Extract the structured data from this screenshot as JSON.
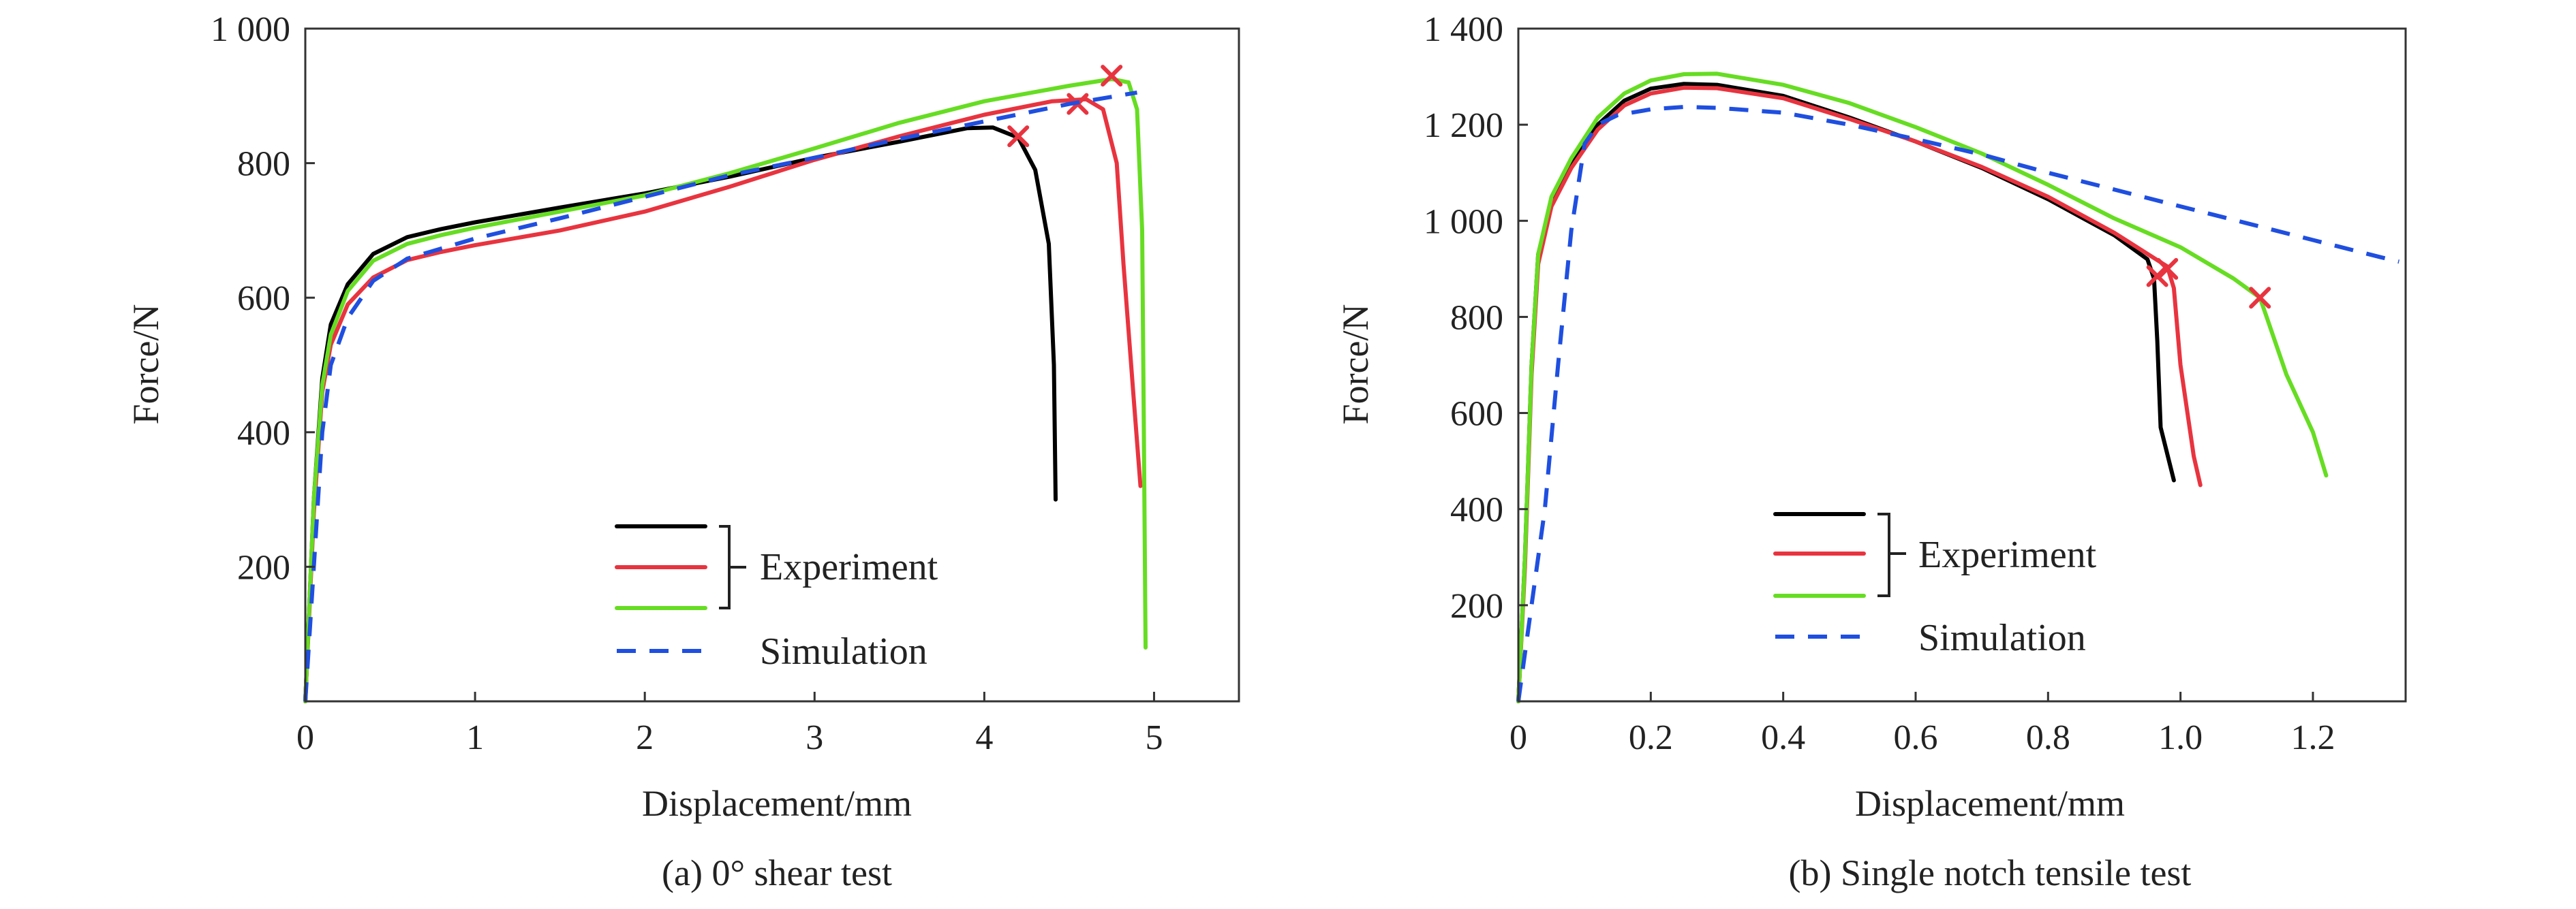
{
  "chart_data": [
    {
      "type": "line",
      "caption": "(a) 0° shear test",
      "xlabel": "Displacement/mm",
      "ylabel": "Force/N",
      "xlim": [
        0,
        5.5
      ],
      "ylim": [
        0,
        1000
      ],
      "xticks": [
        0,
        1,
        2,
        3,
        4,
        5
      ],
      "xtick_labels": [
        "0",
        "1",
        "2",
        "3",
        "4",
        "5"
      ],
      "yticks": [
        200,
        400,
        600,
        800,
        1000
      ],
      "ytick_labels": [
        "200",
        "400",
        "600",
        "800",
        "1 000"
      ],
      "grid": false,
      "legend": {
        "placement": "bottom-center",
        "group_label": "Experiment",
        "simulation_label": "Simulation"
      },
      "series": [
        {
          "group": "experiment",
          "color": "#000000",
          "style": "solid",
          "points": [
            [
              0,
              0
            ],
            [
              0.05,
              300
            ],
            [
              0.1,
              480
            ],
            [
              0.15,
              560
            ],
            [
              0.25,
              620
            ],
            [
              0.4,
              665
            ],
            [
              0.6,
              690
            ],
            [
              0.8,
              702
            ],
            [
              1.0,
              712
            ],
            [
              1.5,
              734
            ],
            [
              2.0,
              755
            ],
            [
              2.5,
              780
            ],
            [
              3.0,
              808
            ],
            [
              3.5,
              832
            ],
            [
              3.9,
              852
            ],
            [
              4.05,
              853
            ],
            [
              4.2,
              838
            ],
            [
              4.3,
              790
            ],
            [
              4.38,
              680
            ],
            [
              4.41,
              500
            ],
            [
              4.42,
              300
            ]
          ],
          "fracture": [
            4.2,
            840
          ]
        },
        {
          "group": "experiment",
          "color": "#e8343f",
          "style": "solid",
          "points": [
            [
              0,
              0
            ],
            [
              0.05,
              280
            ],
            [
              0.1,
              460
            ],
            [
              0.15,
              530
            ],
            [
              0.25,
              590
            ],
            [
              0.4,
              630
            ],
            [
              0.6,
              656
            ],
            [
              0.8,
              668
            ],
            [
              1.0,
              678
            ],
            [
              1.5,
              700
            ],
            [
              2.0,
              728
            ],
            [
              2.5,
              765
            ],
            [
              3.0,
              805
            ],
            [
              3.5,
              840
            ],
            [
              4.0,
              872
            ],
            [
              4.4,
              892
            ],
            [
              4.6,
              895
            ],
            [
              4.7,
              880
            ],
            [
              4.78,
              800
            ],
            [
              4.82,
              650
            ],
            [
              4.88,
              450
            ],
            [
              4.92,
              320
            ]
          ],
          "fracture": [
            4.55,
            888
          ]
        },
        {
          "group": "experiment",
          "color": "#66dd22",
          "style": "solid",
          "points": [
            [
              0,
              0
            ],
            [
              0.05,
              300
            ],
            [
              0.1,
              470
            ],
            [
              0.15,
              545
            ],
            [
              0.25,
              610
            ],
            [
              0.4,
              655
            ],
            [
              0.6,
              680
            ],
            [
              0.8,
              693
            ],
            [
              1.0,
              704
            ],
            [
              1.5,
              728
            ],
            [
              2.0,
              752
            ],
            [
              2.5,
              785
            ],
            [
              3.0,
              822
            ],
            [
              3.5,
              860
            ],
            [
              4.0,
              892
            ],
            [
              4.5,
              915
            ],
            [
              4.75,
              925
            ],
            [
              4.85,
              920
            ],
            [
              4.9,
              880
            ],
            [
              4.93,
              700
            ],
            [
              4.94,
              400
            ],
            [
              4.95,
              80
            ]
          ],
          "fracture": [
            4.75,
            930
          ]
        },
        {
          "group": "simulation",
          "color": "#1f4fe0",
          "style": "dashed",
          "points": [
            [
              0,
              0
            ],
            [
              0.05,
              200
            ],
            [
              0.1,
              400
            ],
            [
              0.15,
              500
            ],
            [
              0.25,
              570
            ],
            [
              0.4,
              625
            ],
            [
              0.6,
              658
            ],
            [
              0.8,
              673
            ],
            [
              1.0,
              688
            ],
            [
              1.5,
              718
            ],
            [
              2.0,
              750
            ],
            [
              2.5,
              782
            ],
            [
              3.0,
              808
            ],
            [
              3.5,
              836
            ],
            [
              4.0,
              862
            ],
            [
              4.5,
              888
            ],
            [
              4.9,
              905
            ]
          ]
        }
      ]
    },
    {
      "type": "line",
      "caption": "(b) Single notch tensile test",
      "xlabel": "Displacement/mm",
      "ylabel": "Force/N",
      "xlim": [
        0,
        1.34
      ],
      "ylim": [
        0,
        1400
      ],
      "xticks": [
        0,
        0.2,
        0.4,
        0.6,
        0.8,
        1.0,
        1.2
      ],
      "xtick_labels": [
        "0",
        "0.2",
        "0.4",
        "0.6",
        "0.8",
        "1.0",
        "1.2"
      ],
      "yticks": [
        200,
        400,
        600,
        800,
        1000,
        1200,
        1400
      ],
      "ytick_labels": [
        "200",
        "400",
        "600",
        "800",
        "1 000",
        "1 200",
        "1 400"
      ],
      "grid": false,
      "legend": {
        "placement": "bottom-left",
        "group_label": "Experiment",
        "simulation_label": "Simulation"
      },
      "series": [
        {
          "group": "experiment",
          "color": "#000000",
          "style": "solid",
          "points": [
            [
              0,
              0
            ],
            [
              0.01,
              300
            ],
            [
              0.02,
              700
            ],
            [
              0.03,
              930
            ],
            [
              0.05,
              1040
            ],
            [
              0.08,
              1120
            ],
            [
              0.12,
              1200
            ],
            [
              0.16,
              1250
            ],
            [
              0.2,
              1275
            ],
            [
              0.25,
              1285
            ],
            [
              0.3,
              1283
            ],
            [
              0.4,
              1260
            ],
            [
              0.5,
              1215
            ],
            [
              0.6,
              1165
            ],
            [
              0.7,
              1110
            ],
            [
              0.8,
              1045
            ],
            [
              0.9,
              970
            ],
            [
              0.95,
              920
            ],
            [
              0.96,
              880
            ],
            [
              0.965,
              750
            ],
            [
              0.97,
              570
            ],
            [
              0.99,
              460
            ]
          ],
          "fracture": [
            0.965,
            885
          ]
        },
        {
          "group": "experiment",
          "color": "#e8343f",
          "style": "solid",
          "points": [
            [
              0,
              0
            ],
            [
              0.01,
              280
            ],
            [
              0.02,
              680
            ],
            [
              0.03,
              910
            ],
            [
              0.05,
              1030
            ],
            [
              0.08,
              1110
            ],
            [
              0.12,
              1190
            ],
            [
              0.16,
              1240
            ],
            [
              0.2,
              1265
            ],
            [
              0.25,
              1277
            ],
            [
              0.3,
              1276
            ],
            [
              0.4,
              1255
            ],
            [
              0.5,
              1212
            ],
            [
              0.6,
              1165
            ],
            [
              0.7,
              1112
            ],
            [
              0.8,
              1050
            ],
            [
              0.9,
              975
            ],
            [
              0.98,
              905
            ],
            [
              0.99,
              860
            ],
            [
              1.0,
              700
            ],
            [
              1.02,
              510
            ],
            [
              1.03,
              450
            ]
          ],
          "fracture": [
            0.98,
            900
          ]
        },
        {
          "group": "experiment",
          "color": "#66dd22",
          "style": "solid",
          "points": [
            [
              0,
              0
            ],
            [
              0.01,
              300
            ],
            [
              0.02,
              700
            ],
            [
              0.03,
              930
            ],
            [
              0.05,
              1050
            ],
            [
              0.08,
              1130
            ],
            [
              0.12,
              1215
            ],
            [
              0.16,
              1265
            ],
            [
              0.2,
              1292
            ],
            [
              0.25,
              1305
            ],
            [
              0.3,
              1306
            ],
            [
              0.4,
              1283
            ],
            [
              0.5,
              1245
            ],
            [
              0.6,
              1195
            ],
            [
              0.7,
              1140
            ],
            [
              0.8,
              1075
            ],
            [
              0.9,
              1005
            ],
            [
              1.0,
              945
            ],
            [
              1.08,
              880
            ],
            [
              1.12,
              840
            ],
            [
              1.13,
              800
            ],
            [
              1.16,
              680
            ],
            [
              1.2,
              560
            ],
            [
              1.22,
              470
            ]
          ],
          "fracture": [
            1.12,
            840
          ]
        },
        {
          "group": "simulation",
          "color": "#1f4fe0",
          "style": "dashed",
          "points": [
            [
              0,
              0
            ],
            [
              0.02,
              200
            ],
            [
              0.04,
              400
            ],
            [
              0.06,
              700
            ],
            [
              0.08,
              980
            ],
            [
              0.1,
              1160
            ],
            [
              0.12,
              1200
            ],
            [
              0.15,
              1220
            ],
            [
              0.2,
              1232
            ],
            [
              0.25,
              1237
            ],
            [
              0.3,
              1235
            ],
            [
              0.4,
              1225
            ],
            [
              0.5,
              1200
            ],
            [
              0.6,
              1170
            ],
            [
              0.7,
              1138
            ],
            [
              0.8,
              1100
            ],
            [
              0.9,
              1065
            ],
            [
              1.0,
              1030
            ],
            [
              1.1,
              995
            ],
            [
              1.2,
              960
            ],
            [
              1.3,
              925
            ],
            [
              1.33,
              915
            ]
          ]
        }
      ]
    }
  ]
}
